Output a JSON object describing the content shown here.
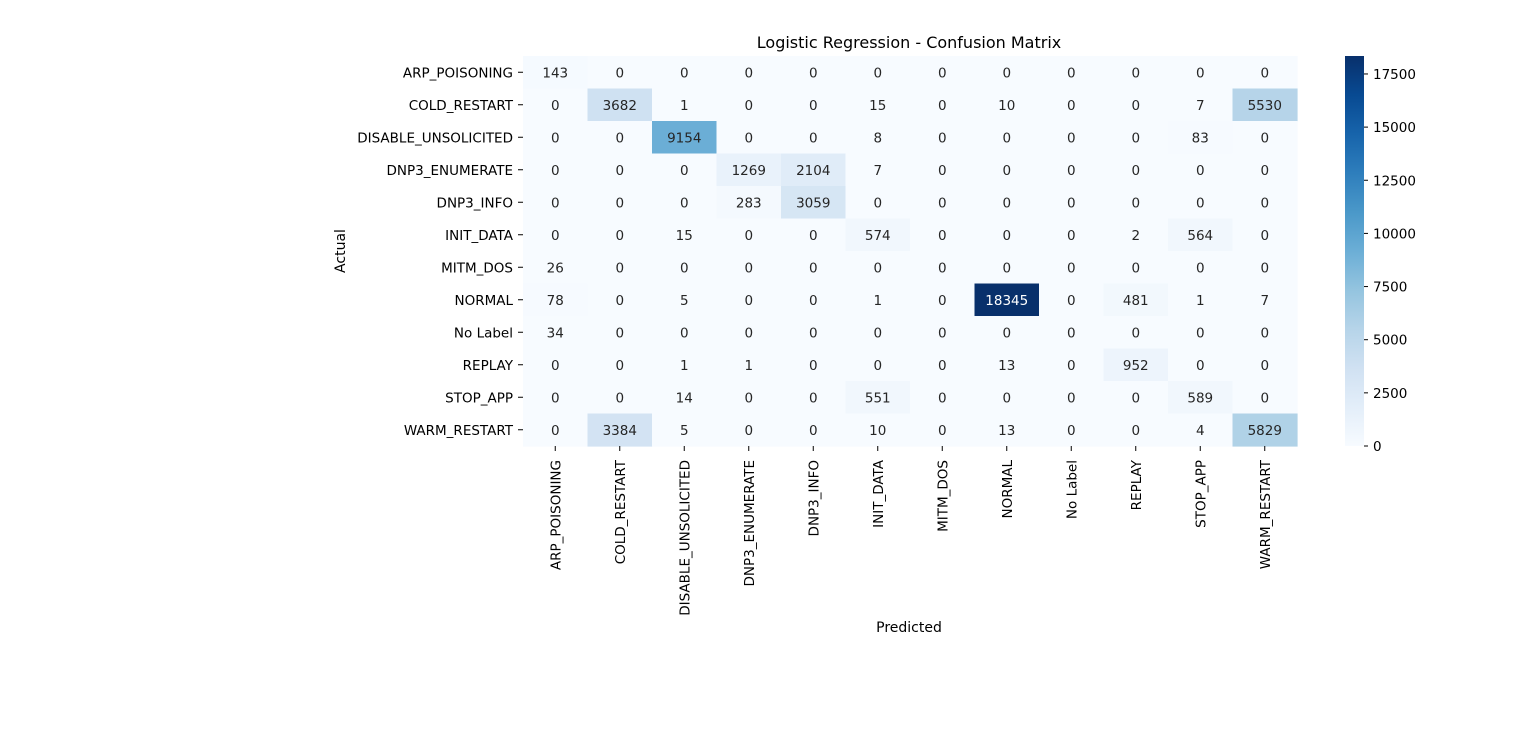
{
  "chart_data": {
    "type": "heatmap",
    "title": "Logistic Regression - Confusion Matrix",
    "xlabel": "Predicted",
    "ylabel": "Actual",
    "row_labels": [
      "ARP_POISONING",
      "COLD_RESTART",
      "DISABLE_UNSOLICITED",
      "DNP3_ENUMERATE",
      "DNP3_INFO",
      "INIT_DATA",
      "MITM_DOS",
      "NORMAL",
      "No Label",
      "REPLAY",
      "STOP_APP",
      "WARM_RESTART"
    ],
    "col_labels": [
      "ARP_POISONING",
      "COLD_RESTART",
      "DISABLE_UNSOLICITED",
      "DNP3_ENUMERATE",
      "DNP3_INFO",
      "INIT_DATA",
      "MITM_DOS",
      "NORMAL",
      "No Label",
      "REPLAY",
      "STOP_APP",
      "WARM_RESTART"
    ],
    "values": [
      [
        143,
        0,
        0,
        0,
        0,
        0,
        0,
        0,
        0,
        0,
        0,
        0
      ],
      [
        0,
        3682,
        1,
        0,
        0,
        15,
        0,
        10,
        0,
        0,
        7,
        5530
      ],
      [
        0,
        0,
        9154,
        0,
        0,
        8,
        0,
        0,
        0,
        0,
        83,
        0
      ],
      [
        0,
        0,
        0,
        1269,
        2104,
        7,
        0,
        0,
        0,
        0,
        0,
        0
      ],
      [
        0,
        0,
        0,
        283,
        3059,
        0,
        0,
        0,
        0,
        0,
        0,
        0
      ],
      [
        0,
        0,
        15,
        0,
        0,
        574,
        0,
        0,
        0,
        2,
        564,
        0
      ],
      [
        26,
        0,
        0,
        0,
        0,
        0,
        0,
        0,
        0,
        0,
        0,
        0
      ],
      [
        78,
        0,
        5,
        0,
        0,
        1,
        0,
        18345,
        0,
        481,
        1,
        7
      ],
      [
        34,
        0,
        0,
        0,
        0,
        0,
        0,
        0,
        0,
        0,
        0,
        0
      ],
      [
        0,
        0,
        1,
        1,
        0,
        0,
        0,
        13,
        0,
        952,
        0,
        0
      ],
      [
        0,
        0,
        14,
        0,
        0,
        551,
        0,
        0,
        0,
        0,
        589,
        0
      ],
      [
        0,
        3384,
        5,
        0,
        0,
        10,
        0,
        13,
        0,
        0,
        4,
        5829
      ]
    ],
    "colorbar": {
      "min": 0,
      "max": 18345,
      "ticks": [
        0,
        2500,
        5000,
        7500,
        10000,
        12500,
        15000,
        17500
      ],
      "colormap": "Blues",
      "color_low": "#f7fbff",
      "color_high": "#08306b"
    },
    "grid": false
  }
}
